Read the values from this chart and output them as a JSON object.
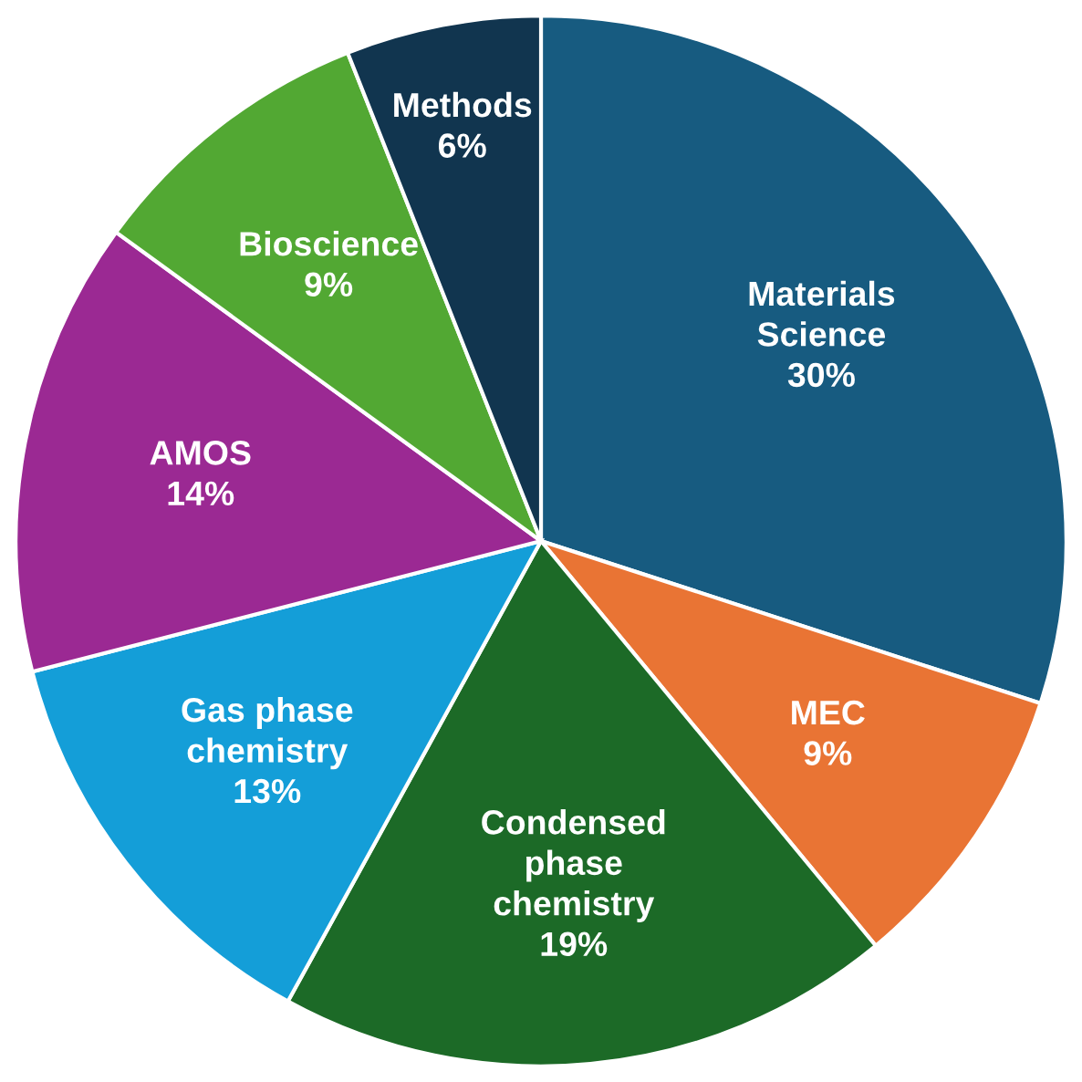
{
  "chart_data": {
    "type": "pie",
    "categories": [
      "Materials\nScience",
      "MEC",
      "Condensed\nphase\nchemistry",
      "Gas phase\nchemistry",
      "AMOS",
      "Bioscience",
      "Methods"
    ],
    "values": [
      30,
      9,
      19,
      13,
      14,
      9,
      6
    ],
    "value_labels": [
      "30%",
      "9%",
      "19%",
      "13%",
      "14%",
      "9%",
      "6%"
    ],
    "colors": [
      "#175b80",
      "#e97434",
      "#1c6a27",
      "#149ed8",
      "#9b2993",
      "#52a833",
      "#11354f"
    ],
    "legend": false
  }
}
